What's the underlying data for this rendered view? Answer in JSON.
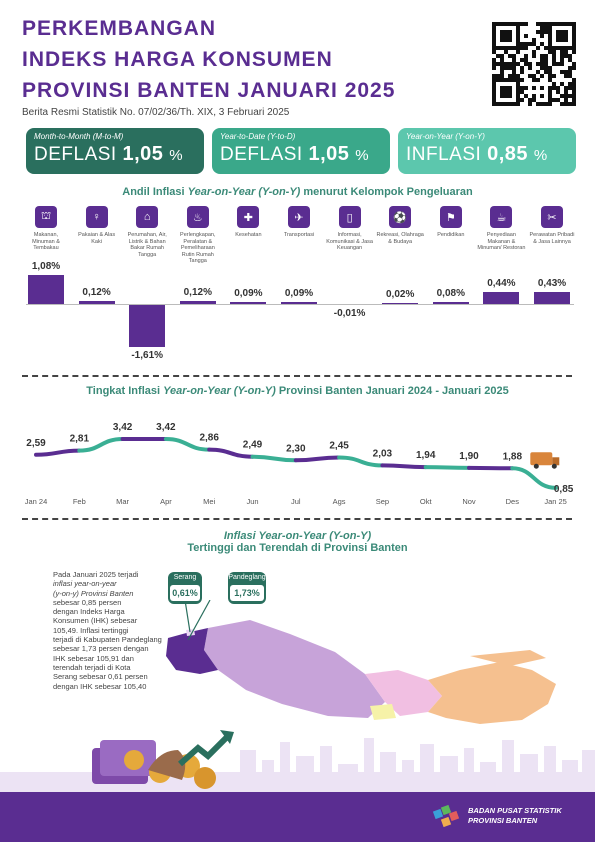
{
  "header": {
    "title_lines": [
      "PERKEMBANGAN",
      "INDEKS HARGA KONSUMEN",
      "PROVINSI BANTEN JANUARI 2025"
    ],
    "subtitle": "Berita Resmi Statistik No. 07/02/36/Th. XIX, 3 Februari 2025"
  },
  "cards": [
    {
      "label": "Month-to-Month (M-to-M)",
      "kind": "DEFLASI",
      "value": "1,05",
      "unit": "%",
      "color": "#2a6f5e"
    },
    {
      "label": "Year-to-Date (Y-to-D)",
      "kind": "DEFLASI",
      "value": "1,05",
      "unit": "%",
      "color": "#3aa88a"
    },
    {
      "label": "Year-on-Year (Y-on-Y)",
      "kind": "INFLASI",
      "value": "0,85",
      "unit": "%",
      "color": "#5cc7ad"
    }
  ],
  "colors": {
    "purple": "#5a2d91",
    "teal": "#3aaf94",
    "dark_teal": "#2a6f5e"
  },
  "chart_data": [
    {
      "type": "bar",
      "title_pre": "Andil Inflasi ",
      "title_em": "Year-on-Year (Y-on-Y)",
      "title_post": " menurut Kelompok Pengeluaran",
      "categories": [
        "Makanan, Minuman & Tembakau",
        "Pakaian & Alas Kaki",
        "Perumahan, Air, Listrik & Bahan Bakar Rumah Tangga",
        "Perlengkapan, Peralatan & Pemeliharaan Rutin Rumah Tangga",
        "Kesehatan",
        "Transportasi",
        "Informasi, Komunikasi & Jasa Keuangan",
        "Rekreasi, Olahraga & Budaya",
        "Pendidikan",
        "Penyediaan Makanan & Minuman/ Restoran",
        "Perawatan Pribadi & Jasa Lainnya"
      ],
      "icons": [
        "food-basket-icon",
        "dress-icon",
        "house-icon",
        "fire-extinguisher-icon",
        "first-aid-icon",
        "airplane-icon",
        "smartphone-icon",
        "soccer-player-icon",
        "graduation-cap-icon",
        "food-tray-icon",
        "tools-icon"
      ],
      "icon_glyphs": [
        "⛫",
        "♀",
        "⌂",
        "♨",
        "✚",
        "✈",
        "▯",
        "⚽",
        "⚑",
        "☕",
        "✂"
      ],
      "values": [
        1.08,
        0.12,
        -1.61,
        0.12,
        0.09,
        0.09,
        -0.01,
        0.02,
        0.08,
        0.44,
        0.43
      ],
      "value_labels": [
        "1,08%",
        "0,12%",
        "-1,61%",
        "0,12%",
        "0,09%",
        "0,09%",
        "-0,01%",
        "0,02%",
        "0,08%",
        "0,44%",
        "0,43%"
      ]
    },
    {
      "type": "line",
      "title_pre": "Tingkat Inflasi ",
      "title_em": "Year-on-Year (Y-on-Y)",
      "title_post": " Provinsi Banten Januari 2024 - Januari 2025",
      "x": [
        "Jan 24",
        "Feb",
        "Mar",
        "Apr",
        "Mei",
        "Jun",
        "Jul",
        "Ags",
        "Sep",
        "Okt",
        "Nov",
        "Des",
        "Jan 25"
      ],
      "values": [
        2.59,
        2.81,
        3.42,
        3.42,
        2.86,
        2.49,
        2.3,
        2.45,
        2.03,
        1.94,
        1.9,
        1.88,
        0.85
      ],
      "value_labels": [
        "2,59",
        "2,81",
        "3,42",
        "3,42",
        "2,86",
        "2,49",
        "2,30",
        "2,45",
        "2,03",
        "1,94",
        "1,90",
        "1,88",
        "0,85"
      ]
    }
  ],
  "map_section": {
    "title_em": "Inflasi Year-on-Year (Y-on-Y)",
    "title2": "Tertinggi dan Terendah di Provinsi Banten",
    "paragraph_lines": [
      "Pada Januari 2025 terjadi",
      "inflasi year-on-year",
      "(y-on-y) Provinsi Banten",
      "sebesar 0,85 persen",
      "dengan Indeks Harga",
      "Konsumen (IHK) sebesar",
      "105,49. Inflasi tertinggi",
      "terjadi di Kabupaten Pandeglang",
      "sebesar 1,73 persen dengan",
      "IHK sebesar 105,91 dan",
      "terendah terjadi di Kota",
      "Serang sebesar 0,61 persen",
      "dengan IHK sebesar 105,40"
    ],
    "badges": [
      {
        "name": "Serang",
        "value": "0,61%"
      },
      {
        "name": "Pandeglang",
        "value": "1,73%"
      }
    ]
  },
  "footer": {
    "line1": "BADAN PUSAT STATISTIK",
    "line2": "PROVINSI BANTEN"
  }
}
